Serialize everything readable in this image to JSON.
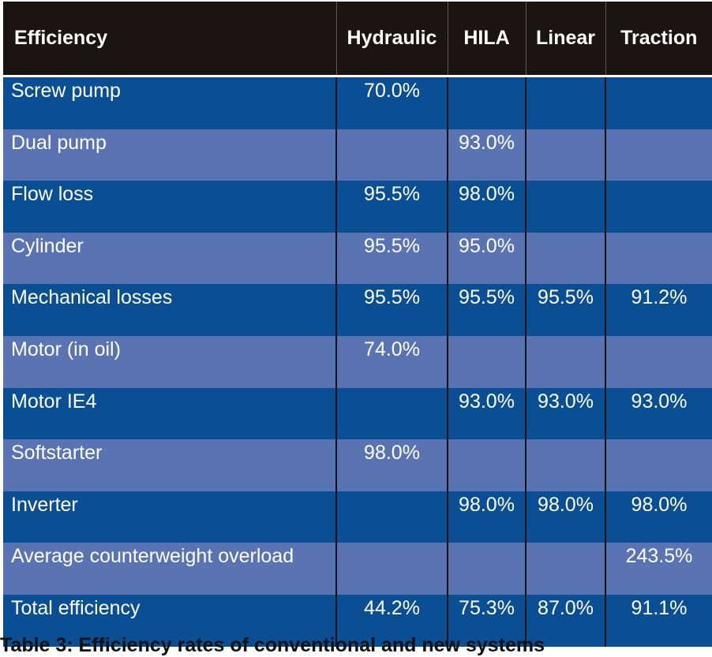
{
  "table": {
    "headers": [
      "Efficiency",
      "Hydraulic",
      "HILA",
      "Linear",
      "Traction"
    ],
    "rows": [
      [
        "Screw pump",
        "70.0%",
        "",
        "",
        ""
      ],
      [
        "Dual pump",
        "",
        "93.0%",
        "",
        ""
      ],
      [
        "Flow loss",
        "95.5%",
        "98.0%",
        "",
        ""
      ],
      [
        "Cylinder",
        "95.5%",
        "95.0%",
        "",
        ""
      ],
      [
        "Mechanical losses",
        "95.5%",
        "95.5%",
        "95.5%",
        "91.2%"
      ],
      [
        "Motor (in oil)",
        "74.0%",
        "",
        "",
        ""
      ],
      [
        "Motor IE4",
        "",
        "93.0%",
        "93.0%",
        "93.0%"
      ],
      [
        "Softstarter",
        "98.0%",
        "",
        "",
        ""
      ],
      [
        "Inverter",
        "",
        "98.0%",
        "98.0%",
        "98.0%"
      ],
      [
        "Average counterweight overload",
        "",
        "",
        "",
        "243.5%"
      ],
      [
        "Total efficiency",
        "44.2%",
        "75.3%",
        "87.0%",
        "91.1%"
      ]
    ]
  },
  "caption": "Table 3: Efficiency rates of conventional and new systems",
  "colors": {
    "header": "#1b1411",
    "row_dark": "#0a4f94",
    "row_light": "#5a73b3"
  }
}
